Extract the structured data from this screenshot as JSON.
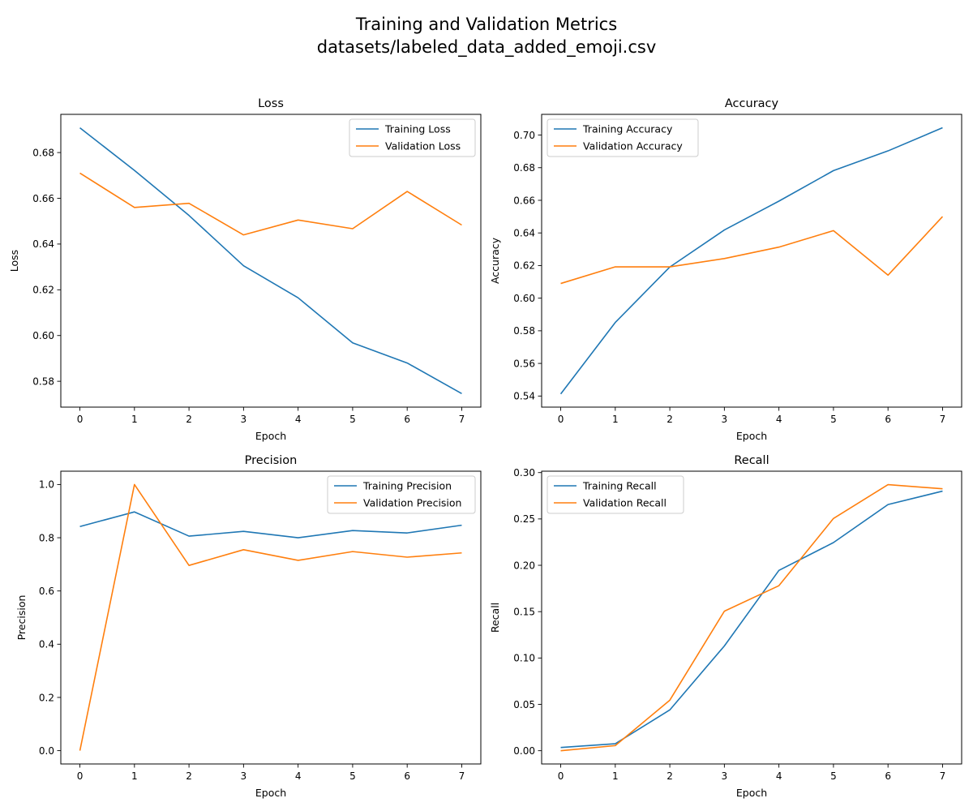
{
  "figure": {
    "title_line1": "Training and Validation Metrics",
    "title_line2": "datasets/labeled_data_added_emoji.csv"
  },
  "colors": {
    "training": "#1f77b4",
    "validation": "#ff7f0e"
  },
  "chart_data": [
    {
      "type": "line",
      "title": "Loss",
      "xlabel": "Epoch",
      "ylabel": "Loss",
      "x": [
        0,
        1,
        2,
        3,
        4,
        5,
        6,
        7
      ],
      "xlim": [
        -0.35,
        7.35
      ],
      "ylim": [
        0.5687,
        0.6967
      ],
      "yticks": [
        0.58,
        0.6,
        0.62,
        0.64,
        0.66,
        0.68
      ],
      "yticklabels": [
        "0.58",
        "0.60",
        "0.62",
        "0.64",
        "0.66",
        "0.68"
      ],
      "legend": "upper-right",
      "grid": false,
      "series": [
        {
          "name": "Training Loss",
          "color": "#1f77b4",
          "values": [
            0.6908,
            0.6722,
            0.6525,
            0.6305,
            0.6165,
            0.5968,
            0.588,
            0.5746
          ]
        },
        {
          "name": "Validation Loss",
          "color": "#ff7f0e",
          "values": [
            0.671,
            0.656,
            0.6578,
            0.644,
            0.6505,
            0.6467,
            0.663,
            0.6483
          ]
        }
      ]
    },
    {
      "type": "line",
      "title": "Accuracy",
      "xlabel": "Epoch",
      "ylabel": "Accuracy",
      "x": [
        0,
        1,
        2,
        3,
        4,
        5,
        6,
        7
      ],
      "xlim": [
        -0.35,
        7.35
      ],
      "ylim": [
        0.5332,
        0.7127
      ],
      "yticks": [
        0.54,
        0.56,
        0.58,
        0.6,
        0.62,
        0.64,
        0.66,
        0.68,
        0.7
      ],
      "yticklabels": [
        "0.54",
        "0.56",
        "0.58",
        "0.60",
        "0.62",
        "0.64",
        "0.66",
        "0.68",
        "0.70"
      ],
      "legend": "upper-left",
      "grid": false,
      "series": [
        {
          "name": "Training Accuracy",
          "color": "#1f77b4",
          "values": [
            0.5413,
            0.5851,
            0.6191,
            0.6418,
            0.6595,
            0.6782,
            0.6903,
            0.7045
          ]
        },
        {
          "name": "Validation Accuracy",
          "color": "#ff7f0e",
          "values": [
            0.609,
            0.6192,
            0.6192,
            0.6243,
            0.6313,
            0.6414,
            0.6141,
            0.65
          ]
        }
      ]
    },
    {
      "type": "line",
      "title": "Precision",
      "xlabel": "Epoch",
      "ylabel": "Precision",
      "x": [
        0,
        1,
        2,
        3,
        4,
        5,
        6,
        7
      ],
      "xlim": [
        -0.35,
        7.35
      ],
      "ylim": [
        -0.05,
        1.05
      ],
      "yticks": [
        0.0,
        0.2,
        0.4,
        0.6,
        0.8,
        1.0
      ],
      "yticklabels": [
        "0.0",
        "0.2",
        "0.4",
        "0.6",
        "0.8",
        "1.0"
      ],
      "legend": "upper-right",
      "grid": false,
      "series": [
        {
          "name": "Training Precision",
          "color": "#1f77b4",
          "values": [
            0.842,
            0.897,
            0.806,
            0.824,
            0.8,
            0.827,
            0.818,
            0.847
          ]
        },
        {
          "name": "Validation Precision",
          "color": "#ff7f0e",
          "values": [
            0.0,
            1.0,
            0.696,
            0.755,
            0.715,
            0.748,
            0.727,
            0.743
          ]
        }
      ]
    },
    {
      "type": "line",
      "title": "Recall",
      "xlabel": "Epoch",
      "ylabel": "Recall",
      "x": [
        0,
        1,
        2,
        3,
        4,
        5,
        6,
        7
      ],
      "xlim": [
        -0.35,
        7.35
      ],
      "ylim": [
        -0.0143,
        0.3015
      ],
      "yticks": [
        0.0,
        0.05,
        0.1,
        0.15,
        0.2,
        0.25,
        0.3
      ],
      "yticklabels": [
        "0.00",
        "0.05",
        "0.10",
        "0.15",
        "0.20",
        "0.25",
        "0.30"
      ],
      "legend": "upper-left",
      "grid": false,
      "series": [
        {
          "name": "Training Recall",
          "color": "#1f77b4",
          "values": [
            0.0035,
            0.0075,
            0.044,
            0.113,
            0.1945,
            0.2245,
            0.2655,
            0.28
          ]
        },
        {
          "name": "Validation Recall",
          "color": "#ff7f0e",
          "values": [
            0.0,
            0.0055,
            0.0545,
            0.1505,
            0.178,
            0.2505,
            0.287,
            0.2825
          ]
        }
      ]
    }
  ]
}
